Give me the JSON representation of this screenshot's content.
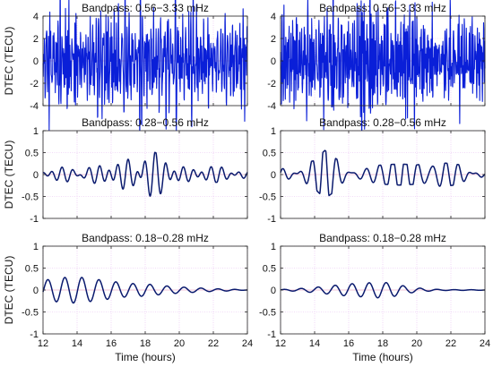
{
  "colors": {
    "signal": "#0a1fd8",
    "signal_smooth": "#0a1a6e",
    "grid": "#e6b8f0",
    "zero_line": "#f2c6d8",
    "axis": "#222222"
  },
  "chart_data": [
    {
      "type": "line",
      "title": "Bandpass: 0.56−3.33 mHz",
      "xlabel": "",
      "ylabel": "DTEC (TECU)",
      "xlim": [
        12,
        24
      ],
      "ylim": [
        -4,
        4
      ],
      "yticks": [
        -4,
        -2,
        0,
        2,
        4
      ],
      "xticks": [
        12,
        14,
        16,
        18,
        20,
        22,
        24
      ],
      "show_xticklabels": false,
      "grid": true,
      "series": [
        {
          "style": "noisy",
          "x_start": 12,
          "x_end": 24,
          "envelope": [
            [
              12,
              2.3
            ],
            [
              14,
              2.4
            ],
            [
              16,
              2.4
            ],
            [
              18,
              2.5
            ],
            [
              20,
              2.3
            ],
            [
              22,
              2.2
            ],
            [
              24,
              1.9
            ]
          ],
          "components": [
            [
              1.2,
              0.55
            ],
            [
              1.9,
              0.4
            ],
            [
              2.7,
              0.45
            ],
            [
              3.4,
              0.3
            ]
          ],
          "seed": 11
        }
      ]
    },
    {
      "type": "line",
      "title": "Bandpass: 0.56−3.33 mHz",
      "xlabel": "",
      "ylabel": "",
      "xlim": [
        12,
        24
      ],
      "ylim": [
        -4,
        4
      ],
      "yticks": [
        -4,
        -2,
        0,
        2,
        4
      ],
      "xticks": [
        12,
        14,
        16,
        18,
        20,
        22,
        24
      ],
      "show_xticklabels": false,
      "grid": true,
      "series": [
        {
          "style": "noisy",
          "x_start": 12,
          "x_end": 24,
          "envelope": [
            [
              12,
              2.2
            ],
            [
              14,
              2.3
            ],
            [
              16,
              2.8
            ],
            [
              17,
              3.2
            ],
            [
              18,
              2.6
            ],
            [
              20,
              2.2
            ],
            [
              22,
              2.0
            ],
            [
              24,
              1.8
            ]
          ],
          "components": [
            [
              1.2,
              0.55
            ],
            [
              1.9,
              0.4
            ],
            [
              2.7,
              0.45
            ],
            [
              3.4,
              0.3
            ]
          ],
          "seed": 29
        }
      ]
    },
    {
      "type": "line",
      "title": "Bandpass: 0.28−0.56 mHz",
      "xlabel": "",
      "ylabel": "DTEC (TECU)",
      "xlim": [
        12,
        24
      ],
      "ylim": [
        -1,
        1
      ],
      "yticks": [
        -1,
        -0.5,
        0,
        0.5,
        1
      ],
      "xticks": [
        12,
        14,
        16,
        18,
        20,
        22,
        24
      ],
      "show_xticklabels": false,
      "grid": true,
      "series": [
        {
          "style": "smooth",
          "x_start": 12,
          "x_end": 24,
          "envelope": [
            [
              12,
              0.14
            ],
            [
              13,
              0.18
            ],
            [
              14,
              0.2
            ],
            [
              15,
              0.22
            ],
            [
              16,
              0.3
            ],
            [
              17,
              0.45
            ],
            [
              17.8,
              0.6
            ],
            [
              18.6,
              0.5
            ],
            [
              19.5,
              0.33
            ],
            [
              20.5,
              0.22
            ],
            [
              22,
              0.18
            ],
            [
              23,
              0.16
            ],
            [
              24,
              0.1
            ]
          ],
          "components": [
            [
              0.4,
              1.0
            ],
            [
              0.5,
              0.35
            ]
          ],
          "seed": 5
        }
      ]
    },
    {
      "type": "line",
      "title": "Bandpass: 0.28−0.56 mHz",
      "xlabel": "",
      "ylabel": "",
      "xlim": [
        12,
        24
      ],
      "ylim": [
        -1,
        1
      ],
      "yticks": [
        -1,
        -0.5,
        0,
        0.5,
        1
      ],
      "xticks": [
        12,
        14,
        16,
        18,
        20,
        22,
        24
      ],
      "show_xticklabels": false,
      "grid": true,
      "series": [
        {
          "style": "smooth",
          "x_start": 12,
          "x_end": 24,
          "envelope": [
            [
              12,
              0.18
            ],
            [
              13,
              0.22
            ],
            [
              14,
              0.32
            ],
            [
              14.6,
              0.55
            ],
            [
              15.3,
              0.35
            ],
            [
              16,
              0.22
            ],
            [
              17,
              0.18
            ],
            [
              18,
              0.22
            ],
            [
              19,
              0.24
            ],
            [
              20,
              0.22
            ],
            [
              21,
              0.28
            ],
            [
              22,
              0.25
            ],
            [
              23,
              0.2
            ],
            [
              24,
              0.05
            ]
          ],
          "components": [
            [
              0.4,
              1.0
            ],
            [
              0.5,
              0.35
            ]
          ],
          "seed": 17
        }
      ]
    },
    {
      "type": "line",
      "title": "Bandpass: 0.18−0.28 mHz",
      "xlabel": "Time (hours)",
      "ylabel": "DTEC (TECU)",
      "xlim": [
        12,
        24
      ],
      "ylim": [
        -1,
        1
      ],
      "yticks": [
        -1,
        -0.5,
        0,
        0.5,
        1
      ],
      "xticks": [
        12,
        14,
        16,
        18,
        20,
        22,
        24
      ],
      "show_xticklabels": true,
      "grid": true,
      "series": [
        {
          "style": "damped",
          "x_start": 12,
          "x_end": 24,
          "envelope": [
            [
              12,
              0.22
            ],
            [
              13,
              0.28
            ],
            [
              14,
              0.3
            ],
            [
              15,
              0.25
            ],
            [
              16,
              0.2
            ],
            [
              17,
              0.15
            ],
            [
              18,
              0.14
            ],
            [
              19,
              0.1
            ],
            [
              20,
              0.07
            ],
            [
              21,
              0.05
            ],
            [
              22,
              0.03
            ],
            [
              23,
              0.02
            ],
            [
              24,
              0.0
            ]
          ],
          "period_hours": 1.0,
          "phase": -0.2
        }
      ]
    },
    {
      "type": "line",
      "title": "Bandpass: 0.18−0.28 mHz",
      "xlabel": "Time (hours)",
      "ylabel": "",
      "xlim": [
        12,
        24
      ],
      "ylim": [
        -1,
        1
      ],
      "yticks": [
        -1,
        -0.5,
        0,
        0.5,
        1
      ],
      "xticks": [
        12,
        14,
        16,
        18,
        20,
        22,
        24
      ],
      "show_xticklabels": true,
      "grid": true,
      "series": [
        {
          "style": "damped",
          "x_start": 12,
          "x_end": 24,
          "envelope": [
            [
              12,
              0.01
            ],
            [
              13,
              0.03
            ],
            [
              14,
              0.06
            ],
            [
              15,
              0.1
            ],
            [
              16,
              0.14
            ],
            [
              17,
              0.16
            ],
            [
              17.8,
              0.18
            ],
            [
              18.5,
              0.16
            ],
            [
              19.5,
              0.07
            ],
            [
              20.5,
              0.03
            ],
            [
              21.5,
              0.01
            ],
            [
              24,
              0.005
            ]
          ],
          "period_hours": 1.0,
          "phase": 0.3
        }
      ]
    }
  ]
}
